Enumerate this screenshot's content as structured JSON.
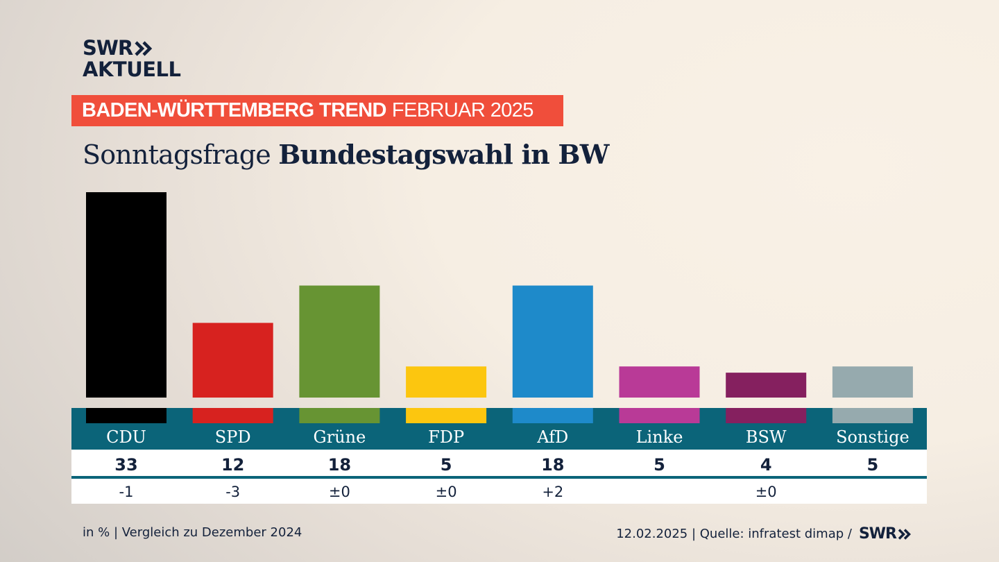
{
  "brand": {
    "logo_line1": "SWR",
    "logo_line2": "AKTUELL",
    "footer_logo": "SWR",
    "logo_icon": "double-chevron-right-icon",
    "colors": {
      "navy": "#13213b",
      "banner": "#f04e3b",
      "teal": "#0b6479",
      "white": "#ffffff"
    }
  },
  "banner": {
    "bold": "BADEN-WÜRTTEMBERG TREND",
    "rest": "FEBRUAR 2025"
  },
  "title": {
    "regular": "Sonntagsfrage",
    "bold": "Bundestagswahl in BW"
  },
  "footer": {
    "left": "in % | Vergleich zu Dezember 2024",
    "right": "12.02.2025 | Quelle: infratest dimap /"
  },
  "chart_data": {
    "type": "bar",
    "title": "Sonntagsfrage Bundestagswahl in BW",
    "subtitle": "BADEN-WÜRTTEMBERG TREND FEBRUAR 2025",
    "xlabel": "",
    "ylabel": "in %",
    "ylim": [
      0,
      33
    ],
    "grid": false,
    "categories": [
      "CDU",
      "SPD",
      "Grüne",
      "FDP",
      "AfD",
      "Linke",
      "BSW",
      "Sonstige"
    ],
    "values": [
      33,
      12,
      18,
      5,
      18,
      5,
      4,
      5
    ],
    "value_labels": [
      "33",
      "12",
      "18",
      "5",
      "18",
      "5",
      "4",
      "5"
    ],
    "changes": [
      "-1",
      "-3",
      "±0",
      "±0",
      "+2",
      "",
      "±0",
      ""
    ],
    "change_reference": "Vergleich zu Dezember 2024",
    "colors": [
      "#000000",
      "#d7221f",
      "#679433",
      "#fcc60f",
      "#1e8aca",
      "#b93a97",
      "#85205f",
      "#96aaae"
    ]
  }
}
